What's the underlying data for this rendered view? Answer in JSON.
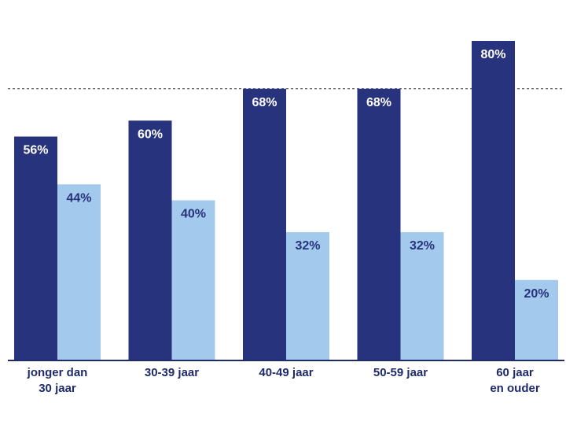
{
  "chart_data": {
    "type": "bar",
    "categories": [
      [
        "jonger dan",
        "30 jaar"
      ],
      [
        "30-39 jaar"
      ],
      [
        "40-49 jaar"
      ],
      [
        "50-59 jaar"
      ],
      [
        "60 jaar",
        "en ouder"
      ]
    ],
    "series": [
      {
        "values": [
          56,
          60,
          68,
          68,
          80
        ],
        "labels": [
          "56%",
          "60%",
          "68%",
          "68%",
          "80%"
        ],
        "color": "#27337c",
        "label_color": "#ffffff"
      },
      {
        "values": [
          44,
          40,
          32,
          32,
          20
        ],
        "labels": [
          "44%",
          "40%",
          "32%",
          "32%",
          "20%"
        ],
        "color": "#a3c9ec",
        "label_color": "#27337c"
      }
    ],
    "ylim": [
      0,
      80
    ],
    "reference_line": 68,
    "title": "",
    "xlabel": "",
    "ylabel": "",
    "grid": false,
    "legend": "none"
  }
}
